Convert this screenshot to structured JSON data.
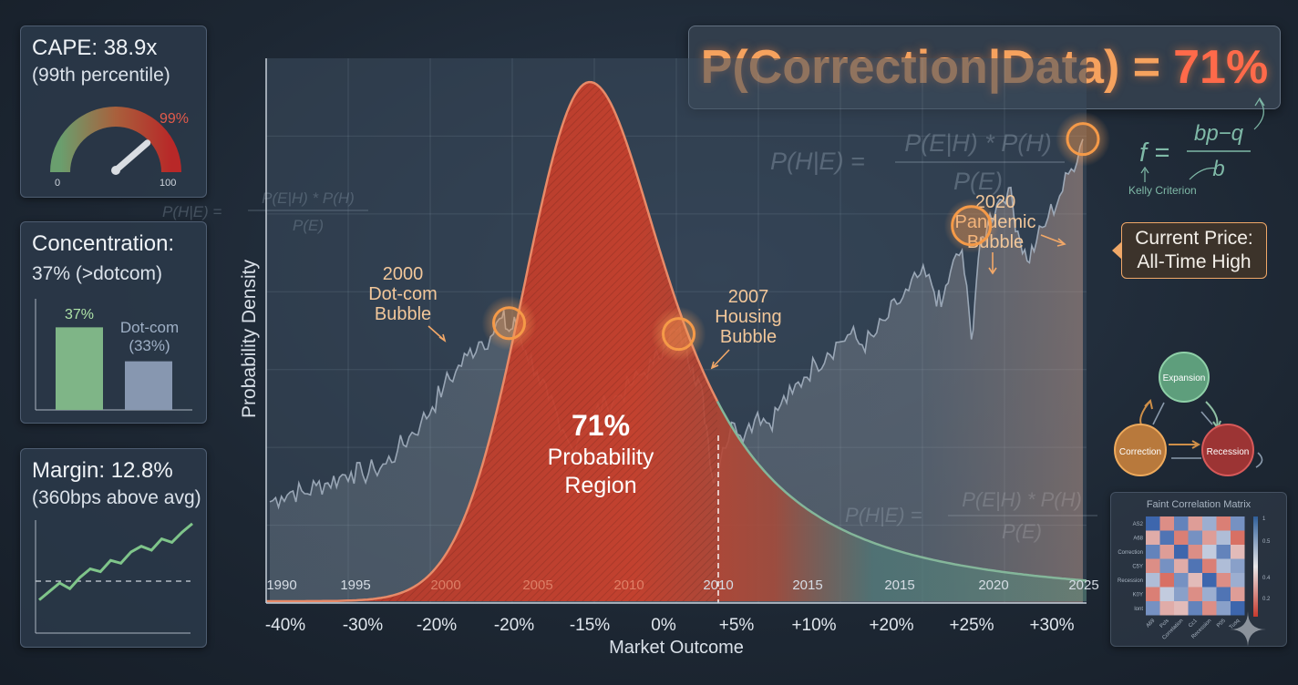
{
  "headline": {
    "prefix": "P(Correction|Data) =",
    "value": "71%"
  },
  "formulas": {
    "bayes": {
      "lhs": "P(H|E) =",
      "numerator": "P(E|H) * P(H)",
      "denominator": "P(E)"
    },
    "kelly": {
      "lhs": "f =",
      "numerator": "bp−q",
      "denominator": "b",
      "caption": "Kelly Criterion"
    }
  },
  "cape_panel": {
    "title": "CAPE: 38.9x",
    "subtitle": "(99th percentile)",
    "gauge_value_label": "99%",
    "gauge_min": "0",
    "gauge_max": "100",
    "gauge_value": 99
  },
  "concentration_panel": {
    "title": "Concentration:",
    "subtitle": "37% (>dotcom)",
    "bars": [
      {
        "label": "37%",
        "value": 37,
        "color": "#7fb587"
      },
      {
        "label": "Dot-com",
        "label2": "(33%)",
        "value": 33,
        "color": "#8797b0"
      }
    ]
  },
  "margin_panel": {
    "title": "Margin: 12.8%",
    "subtitle": "(360bps above avg)",
    "series": [
      2,
      3.5,
      5,
      4,
      6,
      7.5,
      7,
      9,
      8.5,
      10.5,
      11.5,
      10.8,
      12.8,
      12.2,
      14,
      15.5
    ]
  },
  "current_price": {
    "line1": "Current Price:",
    "line2": "All-Time High"
  },
  "chart_data": {
    "type": "line",
    "ylabel": "Probability Density",
    "xlabel": "Market Outcome",
    "x_ticks_outcome": [
      "-40%",
      "-30%",
      "-20%",
      "-20%",
      "-15%",
      "0%",
      "+5%",
      "+10%",
      "+20%",
      "+25%",
      "+30%"
    ],
    "x_ticks_years": [
      "1990",
      "1995",
      "2000",
      "2005",
      "2010",
      "2010",
      "2015",
      "2015",
      "2020",
      "2025"
    ],
    "grid": true,
    "center_label": {
      "value": "71%",
      "line1": "Probability",
      "line2": "Region"
    },
    "density_curve": {
      "outcome_at_peak": "-15%",
      "shaded_probability_pct": 71,
      "cutoff_tick": "+5%"
    },
    "price_series": [
      [
        1990.0,
        3.0
      ],
      [
        1990.5,
        3.2
      ],
      [
        1991.0,
        3.4
      ],
      [
        1991.5,
        3.3
      ],
      [
        1992.0,
        3.6
      ],
      [
        1992.5,
        3.7
      ],
      [
        1993.0,
        3.9
      ],
      [
        1993.5,
        4.1
      ],
      [
        1994.0,
        4.0
      ],
      [
        1994.5,
        4.2
      ],
      [
        1995.0,
        4.4
      ],
      [
        1995.5,
        4.9
      ],
      [
        1996.0,
        5.4
      ],
      [
        1996.5,
        5.9
      ],
      [
        1997.0,
        6.5
      ],
      [
        1997.5,
        7.3
      ],
      [
        1998.0,
        7.8
      ],
      [
        1998.5,
        8.4
      ],
      [
        1999.0,
        8.9
      ],
      [
        1999.5,
        9.1
      ],
      [
        2000.0,
        9.8
      ],
      [
        2000.3,
        9.3
      ],
      [
        2000.6,
        9.6
      ],
      [
        2001.0,
        8.6
      ],
      [
        2001.5,
        7.8
      ],
      [
        2002.0,
        6.8
      ],
      [
        2002.5,
        5.6
      ],
      [
        2003.0,
        5.0
      ],
      [
        2003.5,
        5.8
      ],
      [
        2004.0,
        6.3
      ],
      [
        2004.5,
        6.6
      ],
      [
        2005.0,
        6.9
      ],
      [
        2005.5,
        7.3
      ],
      [
        2006.0,
        7.7
      ],
      [
        2006.5,
        8.1
      ],
      [
        2007.0,
        8.9
      ],
      [
        2007.5,
        9.3
      ],
      [
        2007.8,
        9.0
      ],
      [
        2008.2,
        8.0
      ],
      [
        2008.5,
        7.4
      ],
      [
        2008.8,
        5.8
      ],
      [
        2009.1,
        3.7
      ],
      [
        2009.5,
        5.0
      ],
      [
        2010.0,
        5.9
      ],
      [
        2010.5,
        5.6
      ],
      [
        2011.0,
        6.3
      ],
      [
        2011.5,
        5.9
      ],
      [
        2012.0,
        6.6
      ],
      [
        2012.5,
        7.0
      ],
      [
        2013.0,
        7.6
      ],
      [
        2013.5,
        8.1
      ],
      [
        2014.0,
        8.5
      ],
      [
        2014.5,
        8.9
      ],
      [
        2015.0,
        9.2
      ],
      [
        2015.5,
        8.8
      ],
      [
        2016.0,
        9.1
      ],
      [
        2016.5,
        9.7
      ],
      [
        2017.0,
        10.3
      ],
      [
        2017.5,
        10.8
      ],
      [
        2018.0,
        11.4
      ],
      [
        2018.5,
        11.0
      ],
      [
        2018.9,
        10.2
      ],
      [
        2019.3,
        11.5
      ],
      [
        2019.8,
        12.3
      ],
      [
        2020.2,
        9.0
      ],
      [
        2020.5,
        12.0
      ],
      [
        2020.9,
        13.3
      ],
      [
        2021.3,
        14.0
      ],
      [
        2021.8,
        14.6
      ],
      [
        2022.2,
        13.0
      ],
      [
        2022.6,
        11.9
      ],
      [
        2023.0,
        12.6
      ],
      [
        2023.5,
        13.5
      ],
      [
        2024.0,
        14.3
      ],
      [
        2024.5,
        15.3
      ],
      [
        2025.0,
        16.4
      ]
    ],
    "annotations": [
      {
        "line1": "2000",
        "line2": "Dot-com",
        "line3": "Bubble",
        "year": 2000.3,
        "value": 9.6
      },
      {
        "line1": "2007",
        "line2": "Housing",
        "line3": "Bubble",
        "year": 2007.6,
        "value": 9.2
      },
      {
        "line1": "2020",
        "line2": "Pandemic",
        "line3": "Bubble",
        "year": 2020.2,
        "value": 13.2
      },
      {
        "line1": "",
        "line2": "",
        "line3": "",
        "year": 2025.0,
        "value": 16.4
      }
    ]
  },
  "state_diagram": {
    "nodes": [
      {
        "label": "Expansion",
        "color": "#5e9e7c",
        "stroke": "#8fd0a8"
      },
      {
        "label": "Correction",
        "color": "#b8793c",
        "stroke": "#eeaa5c"
      },
      {
        "label": "Recession",
        "color": "#9c3434",
        "stroke": "#d85a5a"
      }
    ]
  },
  "correlation_matrix": {
    "title": "Faint Correlation Matrix",
    "row_labels": [
      "AS2",
      "A68",
      "Correction",
      "C5Y",
      "Recession",
      "K0Y",
      "lont"
    ],
    "col_labels": [
      "A69",
      "Pcls",
      "Correlation",
      "Cc1",
      "Recession",
      "P05",
      "Tusq"
    ],
    "values": [
      [
        0.9,
        -0.6,
        0.7,
        -0.5,
        0.4,
        -0.7,
        0.6
      ],
      [
        -0.4,
        0.8,
        -0.7,
        0.6,
        -0.5,
        0.3,
        -0.8
      ],
      [
        0.7,
        -0.5,
        0.9,
        -0.6,
        0.2,
        0.7,
        -0.3
      ],
      [
        -0.6,
        0.6,
        -0.4,
        0.8,
        -0.7,
        0.3,
        0.5
      ],
      [
        0.3,
        -0.8,
        0.6,
        -0.3,
        0.9,
        -0.6,
        0.4
      ],
      [
        -0.7,
        0.2,
        0.5,
        -0.6,
        0.4,
        0.8,
        -0.5
      ],
      [
        0.6,
        -0.4,
        -0.3,
        0.7,
        -0.6,
        0.5,
        0.9
      ]
    ],
    "scale": [
      "1",
      "0.5",
      "0.4",
      "0.2"
    ]
  }
}
